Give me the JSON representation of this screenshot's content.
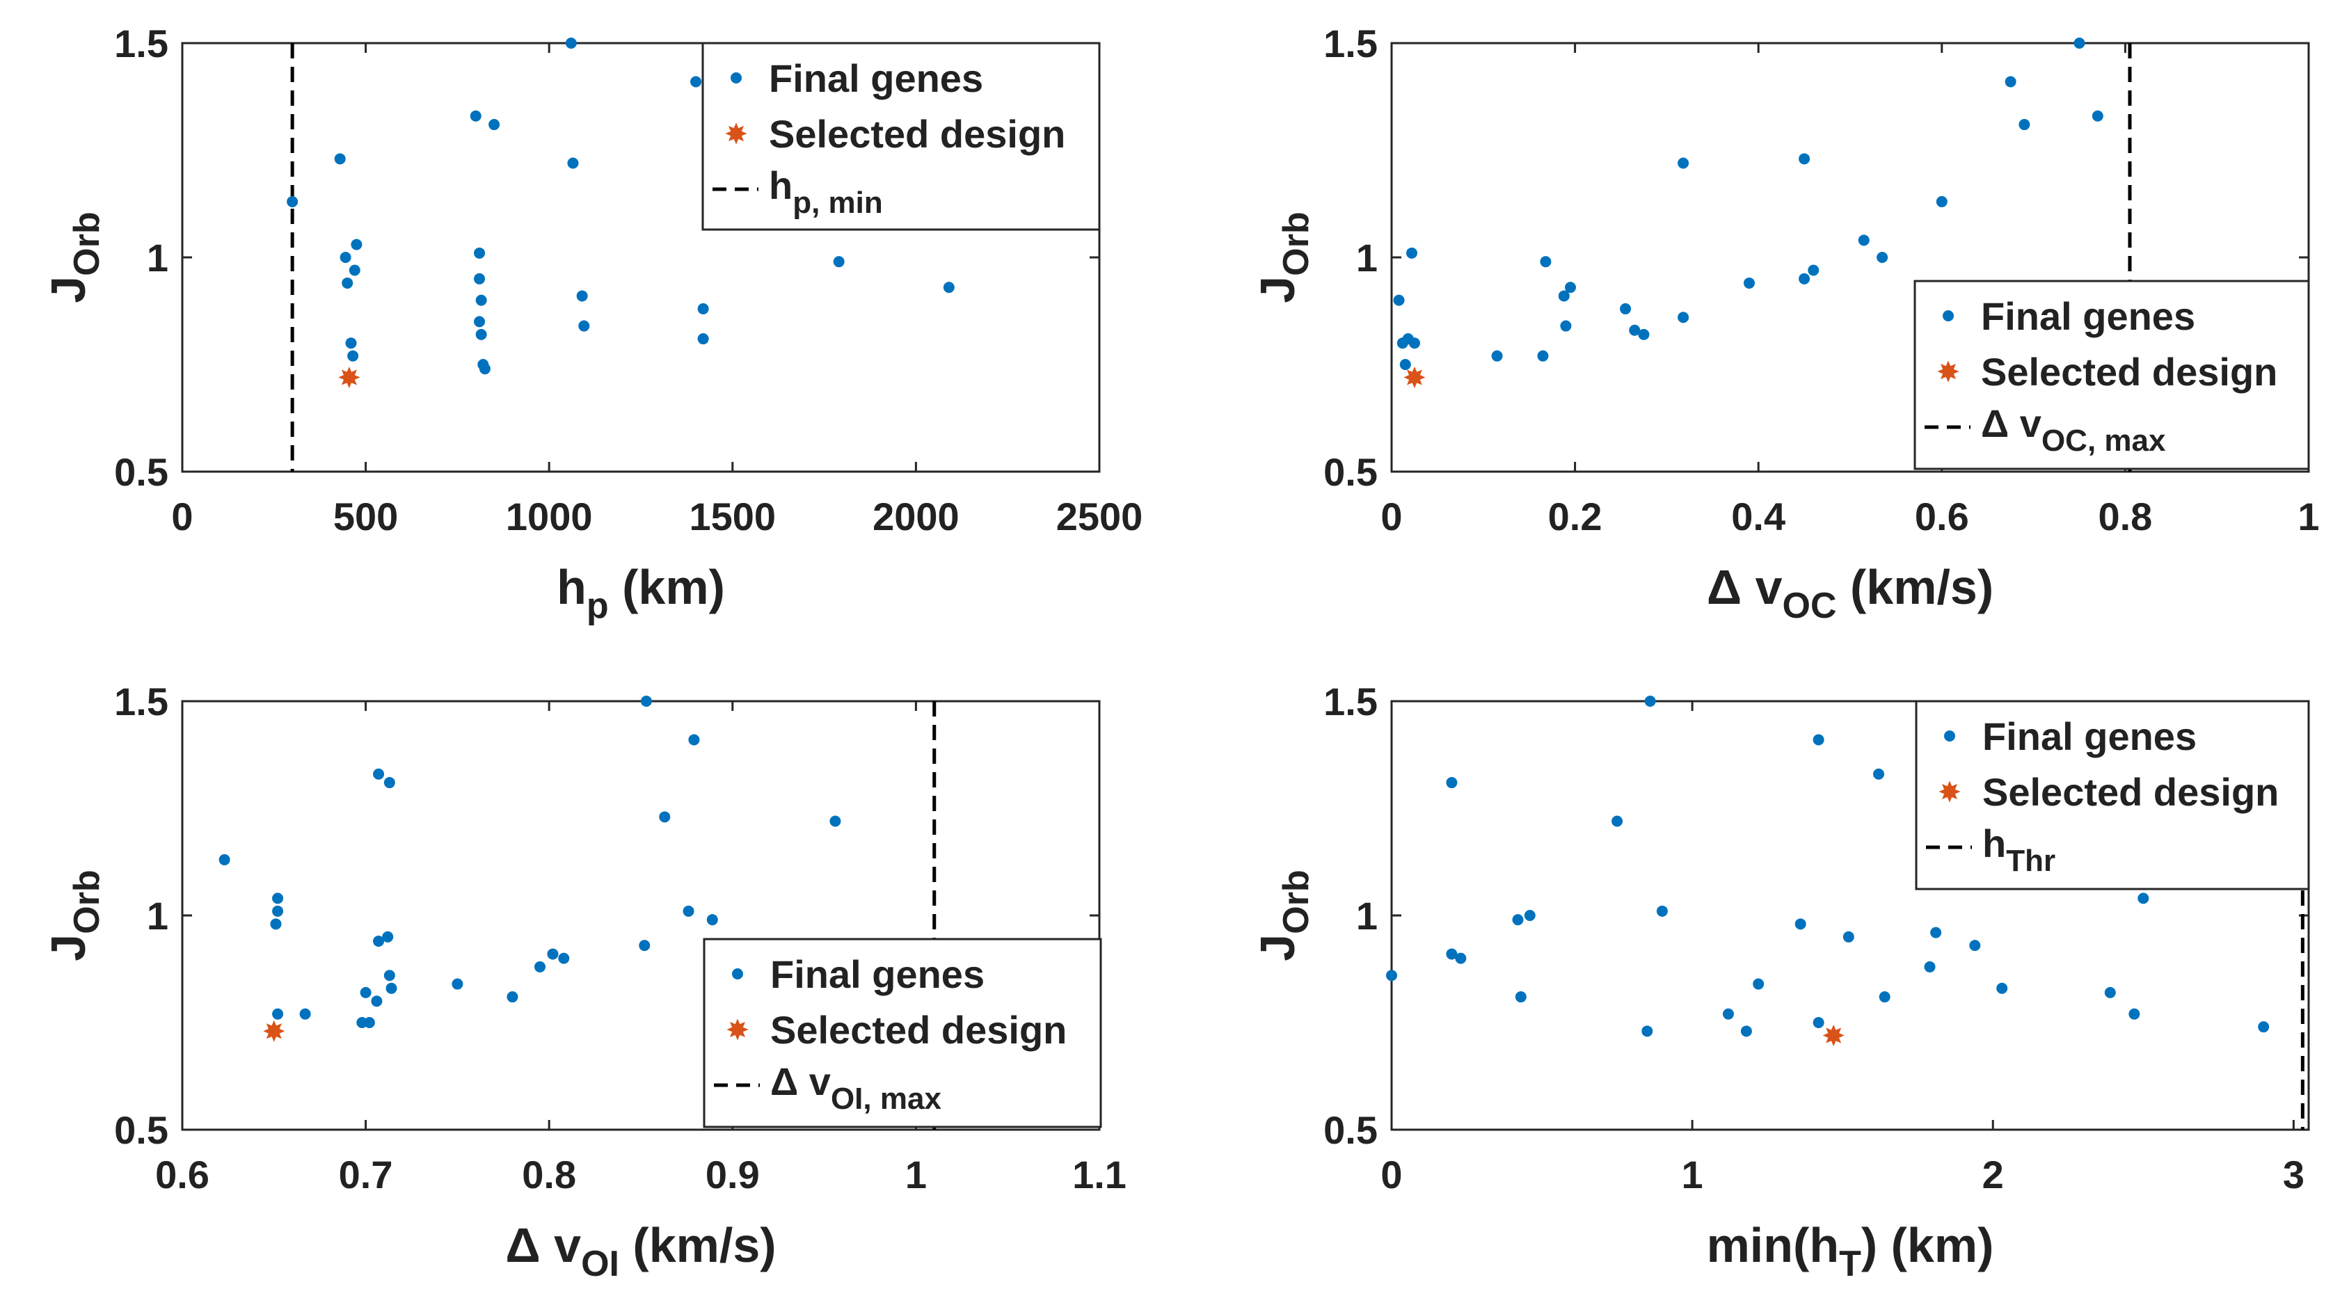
{
  "colors": {
    "genes": "#0072BD",
    "selected": "#D95319",
    "axis": "#262626",
    "text": "#222222"
  },
  "legend": {
    "final_genes": "Final genes",
    "selected_design": "Selected design"
  },
  "chart_data": [
    {
      "type": "scatter",
      "ylabel": {
        "main": "J",
        "sub": "Orb"
      },
      "xlabel": {
        "main": "h",
        "sub": "p",
        "suffix": " (km)"
      },
      "xlim": [
        0,
        2500
      ],
      "ylim": [
        0.5,
        1.5
      ],
      "xticks": [
        0,
        500,
        1000,
        1500,
        2000,
        2500
      ],
      "xtick_labels": [
        "0",
        "500",
        "1000",
        "1500",
        "2000",
        "2500"
      ],
      "yticks": [
        0.5,
        1,
        1.5
      ],
      "ytick_labels": [
        "0.5",
        "1",
        "1.5"
      ],
      "constraint": {
        "value": 300,
        "label": "h",
        "sub": "p, min"
      },
      "legend_position": "top-right",
      "series": [
        {
          "name": "Final genes",
          "points": [
            [
              300,
              1.13
            ],
            [
              430,
              1.23
            ],
            [
              445,
              1.0
            ],
            [
              450,
              0.94
            ],
            [
              460,
              0.8
            ],
            [
              465,
              0.77
            ],
            [
              470,
              0.97
            ],
            [
              475,
              1.03
            ],
            [
              800,
              1.33
            ],
            [
              850,
              1.31
            ],
            [
              810,
              1.01
            ],
            [
              810,
              0.95
            ],
            [
              815,
              0.9
            ],
            [
              810,
              0.85
            ],
            [
              815,
              0.82
            ],
            [
              820,
              0.75
            ],
            [
              825,
              0.74
            ],
            [
              1060,
              1.5
            ],
            [
              1065,
              1.22
            ],
            [
              1090,
              0.91
            ],
            [
              1095,
              0.84
            ],
            [
              1400,
              1.41
            ],
            [
              1420,
              0.88
            ],
            [
              1420,
              0.81
            ],
            [
              1790,
              0.99
            ],
            [
              2090,
              0.93
            ]
          ]
        },
        {
          "name": "Selected design",
          "points": [
            [
              455,
              0.72
            ]
          ]
        }
      ]
    },
    {
      "type": "scatter",
      "ylabel": {
        "main": "J",
        "sub": "Orb"
      },
      "xlabel": {
        "main": "Δ v",
        "sub": "OC",
        "suffix": " (km/s)"
      },
      "xlim": [
        0,
        1
      ],
      "ylim": [
        0.5,
        1.5
      ],
      "xticks": [
        0,
        0.2,
        0.4,
        0.6,
        0.8,
        1
      ],
      "xtick_labels": [
        "0",
        "0.2",
        "0.4",
        "0.6",
        "0.8",
        "1"
      ],
      "yticks": [
        0.5,
        1,
        1.5
      ],
      "ytick_labels": [
        "0.5",
        "1",
        "1.5"
      ],
      "constraint": {
        "value": 0.805,
        "label": "Δ v",
        "sub": "OC, max"
      },
      "legend_position": "bottom-right",
      "series": [
        {
          "name": "Final genes",
          "points": [
            [
              0.008,
              0.9
            ],
            [
              0.012,
              0.8
            ],
            [
              0.018,
              0.81
            ],
            [
              0.022,
              1.01
            ],
            [
              0.025,
              0.8
            ],
            [
              0.015,
              0.75
            ],
            [
              0.115,
              0.77
            ],
            [
              0.165,
              0.77
            ],
            [
              0.168,
              0.99
            ],
            [
              0.188,
              0.91
            ],
            [
              0.195,
              0.93
            ],
            [
              0.19,
              0.84
            ],
            [
              0.255,
              0.88
            ],
            [
              0.265,
              0.83
            ],
            [
              0.275,
              0.82
            ],
            [
              0.318,
              1.22
            ],
            [
              0.318,
              0.86
            ],
            [
              0.39,
              0.94
            ],
            [
              0.45,
              1.23
            ],
            [
              0.45,
              0.95
            ],
            [
              0.46,
              0.97
            ],
            [
              0.515,
              1.04
            ],
            [
              0.535,
              1.0
            ],
            [
              0.6,
              1.13
            ],
            [
              0.675,
              1.41
            ],
            [
              0.69,
              1.31
            ],
            [
              0.75,
              1.5
            ],
            [
              0.77,
              1.33
            ]
          ]
        },
        {
          "name": "Selected design",
          "points": [
            [
              0.025,
              0.72
            ]
          ]
        }
      ]
    },
    {
      "type": "scatter",
      "ylabel": {
        "main": "J",
        "sub": "Orb"
      },
      "xlabel": {
        "main": "Δ v",
        "sub": "OI",
        "suffix": " (km/s)"
      },
      "xlim": [
        0.6,
        1.1
      ],
      "ylim": [
        0.5,
        1.5
      ],
      "xticks": [
        0.6,
        0.7,
        0.8,
        0.9,
        1,
        1.1
      ],
      "xtick_labels": [
        "0.6",
        "0.7",
        "0.8",
        "0.9",
        "1",
        "1.1"
      ],
      "yticks": [
        0.5,
        1,
        1.5
      ],
      "ytick_labels": [
        "0.5",
        "1",
        "1.5"
      ],
      "constraint": {
        "value": 1.01,
        "label": "Δ v",
        "sub": "OI, max"
      },
      "legend_position": "bottom-right",
      "series": [
        {
          "name": "Final genes",
          "points": [
            [
              0.623,
              1.13
            ],
            [
              0.652,
              1.04
            ],
            [
              0.652,
              1.01
            ],
            [
              0.651,
              0.98
            ],
            [
              0.652,
              0.77
            ],
            [
              0.667,
              0.77
            ],
            [
              0.698,
              0.75
            ],
            [
              0.702,
              0.75
            ],
            [
              0.7,
              0.82
            ],
            [
              0.706,
              0.8
            ],
            [
              0.707,
              0.94
            ],
            [
              0.712,
              0.95
            ],
            [
              0.713,
              0.86
            ],
            [
              0.714,
              0.83
            ],
            [
              0.707,
              1.33
            ],
            [
              0.713,
              1.31
            ],
            [
              0.75,
              0.84
            ],
            [
              0.78,
              0.81
            ],
            [
              0.795,
              0.88
            ],
            [
              0.802,
              0.91
            ],
            [
              0.808,
              0.9
            ],
            [
              0.852,
              0.93
            ],
            [
              0.853,
              1.5
            ],
            [
              0.863,
              1.23
            ],
            [
              0.876,
              1.01
            ],
            [
              0.879,
              1.41
            ],
            [
              0.889,
              0.99
            ],
            [
              0.956,
              1.22
            ]
          ]
        },
        {
          "name": "Selected design",
          "points": [
            [
              0.65,
              0.73
            ]
          ]
        }
      ]
    },
    {
      "type": "scatter",
      "ylabel": {
        "main": "J",
        "sub": "Orb"
      },
      "xlabel": {
        "main": "min(h",
        "sub": "T",
        "suffix": ") (km)"
      },
      "xlim": [
        0,
        3.05
      ],
      "ylim": [
        0.5,
        1.5
      ],
      "xticks": [
        0,
        1,
        2,
        3
      ],
      "xtick_labels": [
        "0",
        "1",
        "2",
        "3"
      ],
      "yticks": [
        0.5,
        1,
        1.5
      ],
      "ytick_labels": [
        "0.5",
        "1",
        "1.5"
      ],
      "constraint": {
        "value": 3.03,
        "label": "h",
        "sub": "Thr"
      },
      "legend_position": "top-right",
      "series": [
        {
          "name": "Final genes",
          "points": [
            [
              0.0,
              0.86
            ],
            [
              0.2,
              1.31
            ],
            [
              0.2,
              0.91
            ],
            [
              0.23,
              0.9
            ],
            [
              0.42,
              0.99
            ],
            [
              0.43,
              0.81
            ],
            [
              0.46,
              1.0
            ],
            [
              0.75,
              1.22
            ],
            [
              0.85,
              0.73
            ],
            [
              0.86,
              1.5
            ],
            [
              0.9,
              1.01
            ],
            [
              1.12,
              0.77
            ],
            [
              1.18,
              0.73
            ],
            [
              1.22,
              0.84
            ],
            [
              1.36,
              0.98
            ],
            [
              1.42,
              1.41
            ],
            [
              1.42,
              0.75
            ],
            [
              1.52,
              0.95
            ],
            [
              1.62,
              1.33
            ],
            [
              1.64,
              0.81
            ],
            [
              1.79,
              0.88
            ],
            [
              1.81,
              0.96
            ],
            [
              1.94,
              0.93
            ],
            [
              2.03,
              0.83
            ],
            [
              2.39,
              0.82
            ],
            [
              2.47,
              0.77
            ],
            [
              2.5,
              1.04
            ],
            [
              2.9,
              0.74
            ]
          ]
        },
        {
          "name": "Selected design",
          "points": [
            [
              1.47,
              0.72
            ]
          ]
        }
      ]
    }
  ]
}
